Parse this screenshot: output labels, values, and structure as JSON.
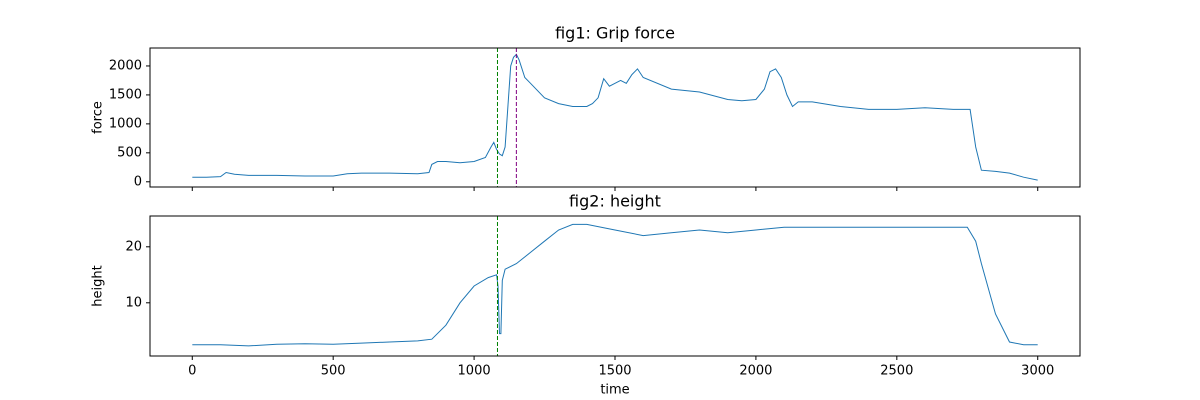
{
  "chart_data": [
    {
      "type": "line",
      "title": "fig1: Grip force",
      "ylabel": "force",
      "x": [
        0,
        50,
        100,
        120,
        150,
        200,
        300,
        400,
        500,
        550,
        600,
        700,
        800,
        840,
        850,
        870,
        900,
        950,
        1000,
        1040,
        1060,
        1070,
        1080,
        1090,
        1100,
        1110,
        1120,
        1130,
        1140,
        1150,
        1160,
        1180,
        1200,
        1250,
        1300,
        1350,
        1400,
        1420,
        1440,
        1460,
        1480,
        1500,
        1520,
        1540,
        1560,
        1580,
        1600,
        1700,
        1800,
        1900,
        1950,
        2000,
        2030,
        2050,
        2070,
        2090,
        2110,
        2130,
        2150,
        2200,
        2300,
        2400,
        2500,
        2600,
        2700,
        2740,
        2760,
        2780,
        2800,
        2850,
        2900,
        2950,
        3000
      ],
      "series": [
        {
          "color": "#1f77b4",
          "values": [
            80,
            80,
            90,
            160,
            130,
            110,
            110,
            100,
            100,
            140,
            150,
            150,
            140,
            160,
            300,
            350,
            350,
            330,
            350,
            420,
            600,
            680,
            560,
            480,
            450,
            600,
            1300,
            2000,
            2150,
            2200,
            2100,
            1800,
            1700,
            1450,
            1350,
            1300,
            1300,
            1350,
            1450,
            1780,
            1650,
            1700,
            1750,
            1700,
            1850,
            1950,
            1800,
            1600,
            1550,
            1420,
            1400,
            1420,
            1600,
            1900,
            1950,
            1800,
            1500,
            1300,
            1380,
            1380,
            1300,
            1250,
            1250,
            1280,
            1250,
            1250,
            1250,
            600,
            200,
            180,
            150,
            80,
            30
          ]
        }
      ],
      "vlines": [
        {
          "x": 1083,
          "color": "green"
        },
        {
          "x": 1150,
          "color": "purple"
        }
      ],
      "xlim": [
        -150,
        3150
      ],
      "ylim": [
        -90,
        2310
      ],
      "xticks": [
        0,
        500,
        1000,
        1500,
        2000,
        2500,
        3000
      ],
      "show_xtick_labels": false,
      "yticks": [
        0,
        500,
        1000,
        1500,
        2000
      ]
    },
    {
      "type": "line",
      "title": "fig2: height",
      "ylabel": "height",
      "xlabel": "time",
      "x": [
        0,
        100,
        200,
        300,
        400,
        500,
        600,
        700,
        800,
        850,
        900,
        950,
        1000,
        1050,
        1080,
        1085,
        1090,
        1095,
        1100,
        1110,
        1150,
        1200,
        1250,
        1300,
        1350,
        1400,
        1500,
        1600,
        1700,
        1800,
        1900,
        2000,
        2100,
        2200,
        2300,
        2400,
        2500,
        2600,
        2700,
        2750,
        2780,
        2800,
        2850,
        2900,
        2950,
        3000
      ],
      "series": [
        {
          "color": "#1f77b4",
          "values": [
            2.5,
            2.5,
            2.3,
            2.6,
            2.7,
            2.6,
            2.8,
            3,
            3.2,
            3.5,
            6,
            10,
            13,
            14.5,
            15,
            13,
            4.5,
            4.5,
            14,
            16,
            17,
            19,
            21,
            23,
            24,
            24,
            23,
            22,
            22.5,
            23,
            22.5,
            23,
            23.5,
            23.5,
            23.5,
            23.5,
            23.5,
            23.5,
            23.5,
            23.5,
            21,
            17,
            8,
            3,
            2.5,
            2.5
          ]
        }
      ],
      "vlines": [
        {
          "x": 1083,
          "color": "green"
        }
      ],
      "xlim": [
        -150,
        3150
      ],
      "ylim": [
        0.5,
        25.5
      ],
      "xticks": [
        0,
        500,
        1000,
        1500,
        2000,
        2500,
        3000
      ],
      "show_xtick_labels": true,
      "yticks": [
        10,
        20
      ]
    }
  ]
}
